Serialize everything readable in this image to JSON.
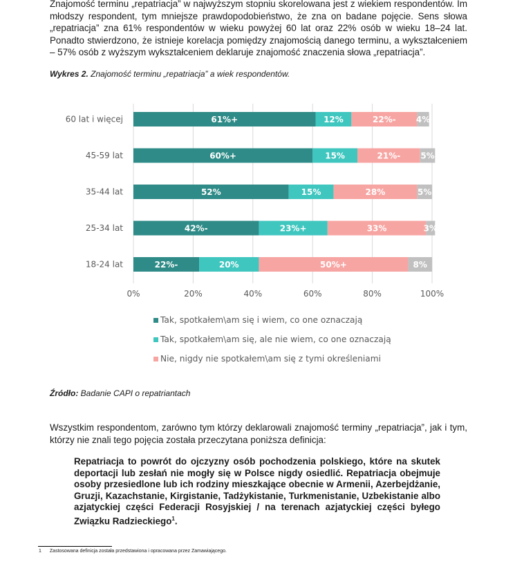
{
  "paragraph_1": "Znajomość terminu „repatriacja” w najwyższym stopniu skorelowana jest z wiekiem respondentów. Im młodszy respondent, tym mniejsze prawdopodobieństwo, że zna on badane pojęcie. Sens słowa „repatriacja” zna 61% respondentów w wieku powyżej 60 lat oraz 22% osób w wieku 18–24 lat. Ponadto stwierdzono, że istnieje korelacja pomiędzy znajomością danego terminu, a wykształceniem – 57% osób z wyższym wykształceniem deklaruje znajomość znaczenia słowa „repatriacja”.",
  "caption": {
    "label": "Wykres 2.",
    "text": " Znajomość terminu „repatriacja” a wiek respondentów."
  },
  "chart_data": {
    "type": "bar",
    "orientation": "horizontal",
    "stacked": true,
    "categories": [
      "60 lat i więcej",
      "45-59 lat",
      "35-44 lat",
      "25-34 lat",
      "18-24 lat"
    ],
    "series": [
      {
        "name": "Tak, spotkałem\\am się i wiem, co one oznaczają",
        "color": "#2e8b87",
        "values": [
          61,
          60,
          52,
          42,
          22
        ],
        "labels": [
          "61%+",
          "60%+",
          "52%",
          "42%-",
          "22%-"
        ]
      },
      {
        "name": "Tak, spotkałem\\am się, ale nie wiem, co one oznaczają",
        "color": "#3fc6bf",
        "values": [
          12,
          15,
          15,
          23,
          20
        ],
        "labels": [
          "12%",
          "15%",
          "15%",
          "23%+",
          "20%"
        ]
      },
      {
        "name": "Nie, nigdy nie spotkałem\\am się z tymi określeniami",
        "color": "#f7a5a2",
        "values": [
          22,
          21,
          28,
          33,
          50
        ],
        "labels": [
          "22%-",
          "21%-",
          "28%",
          "33%",
          "50%+"
        ]
      },
      {
        "name": "",
        "color": "#c0c0c0",
        "values": [
          4,
          5,
          5,
          3,
          8
        ],
        "labels": [
          "4%",
          "5%",
          "5%",
          "3%",
          "8%"
        ]
      }
    ],
    "xlim": [
      0,
      100
    ],
    "xticks": [
      "0%",
      "20%",
      "40%",
      "60%",
      "80%",
      "100%"
    ],
    "legend_position": "bottom",
    "grid": true
  },
  "source": {
    "label": "Źródło:",
    "text": " Badanie CAPI o repatriantach"
  },
  "paragraph_2": "Wszystkim respondentom, zarówno tym którzy deklarowali znajomość terminy „repatriacja”, jak i tym, którzy nie znali tego pojęcia została przeczytana poniższa definicja:",
  "quote": "Repatriacja to powrót do ojczyzny osób pochodzenia polskiego, które na skutek deportacji lub zesłań nie mogły się w Polsce nigdy osiedlić. Repatriacja obejmuje osoby przesiedlone lub ich rodziny mieszkające obecnie w Armenii, Azerbejdżanie, Gruzji, Kazachstanie, Kirgistanie, Tadżykistanie, Turkmenistanie, Uzbekistanie albo azjatyckiej części Federacji Rosyjskiej / na terenach azjatyckiej części byłego Związku Radzieckiego",
  "quote_footnote_ref": "1",
  "quote_end": ".",
  "footnote": {
    "number": "1",
    "text": "Zastosowana definicja została przedstawiona i opracowana przez Zamawiającego."
  }
}
